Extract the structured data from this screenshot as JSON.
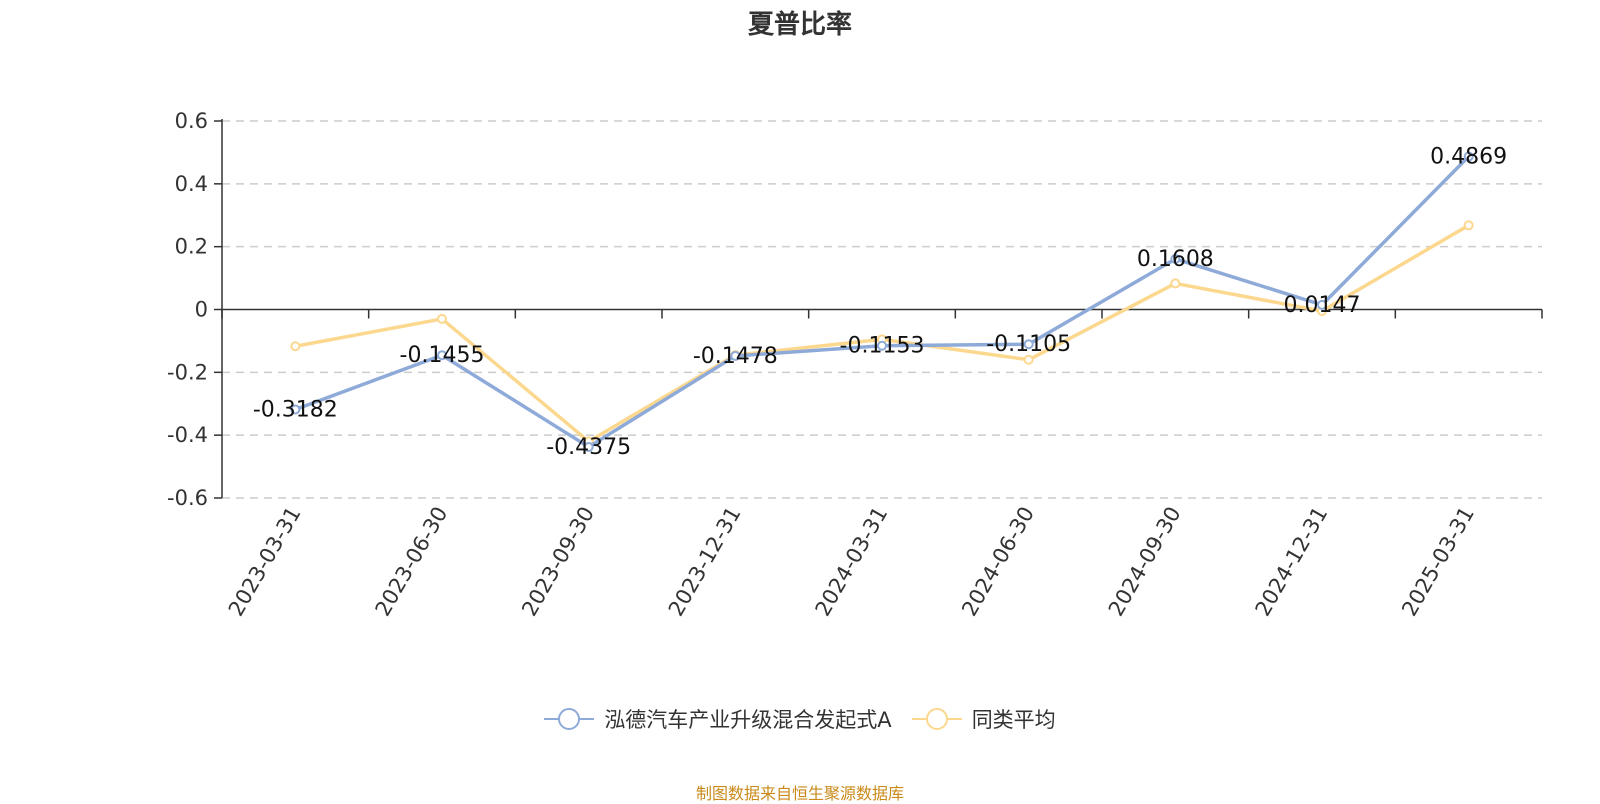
{
  "chart_data": {
    "type": "line",
    "title": "夏普比率",
    "categories": [
      "2023-03-31",
      "2023-06-30",
      "2023-09-30",
      "2023-12-31",
      "2024-03-31",
      "2024-06-30",
      "2024-09-30",
      "2024-12-31",
      "2025-03-31"
    ],
    "series": [
      {
        "name": "泓德汽车产业升级混合发起式A",
        "color": "#8eaad8",
        "values": [
          -0.3182,
          -0.1455,
          -0.4375,
          -0.1478,
          -0.1153,
          -0.1105,
          0.1608,
          0.0147,
          0.4869
        ],
        "data_labels": [
          "-0.3182",
          "-0.1455",
          "-0.4375",
          "-0.1478",
          "-0.1153",
          "-0.1105",
          "0.1608",
          "0.0147",
          "0.4869"
        ]
      },
      {
        "name": "同类平均",
        "color": "#fcd88f",
        "values": [
          -0.117,
          -0.03,
          -0.42,
          -0.145,
          -0.095,
          -0.16,
          0.083,
          -0.005,
          0.268
        ]
      }
    ],
    "ylim": [
      -0.6,
      0.6
    ],
    "yticks": [
      -0.6,
      -0.4,
      -0.2,
      0,
      0.2,
      0.4,
      0.6
    ],
    "ytick_labels": [
      "-0.6",
      "-0.4",
      "-0.2",
      "0",
      "0.2",
      "0.4",
      "0.6"
    ],
    "grid": true,
    "legend_position": "bottom-center",
    "xlabel": "",
    "ylabel": ""
  },
  "source_note": "制图数据来自恒生聚源数据库"
}
